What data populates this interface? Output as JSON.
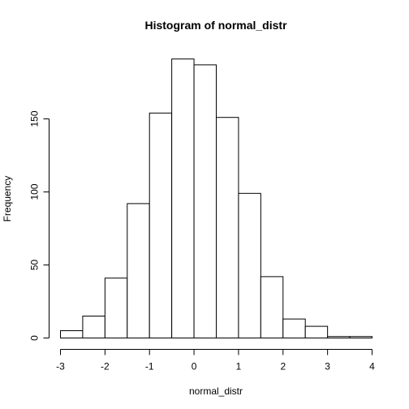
{
  "chart_data": {
    "type": "bar",
    "title": "Histogram of normal_distr",
    "xlabel": "normal_distr",
    "ylabel": "Frequency",
    "bins": [
      {
        "start": -3.0,
        "end": -2.5,
        "count": 5
      },
      {
        "start": -2.5,
        "end": -2.0,
        "count": 15
      },
      {
        "start": -2.0,
        "end": -1.5,
        "count": 41
      },
      {
        "start": -1.5,
        "end": -1.0,
        "count": 92
      },
      {
        "start": -1.0,
        "end": -0.5,
        "count": 154
      },
      {
        "start": -0.5,
        "end": 0.0,
        "count": 191
      },
      {
        "start": 0.0,
        "end": 0.5,
        "count": 187
      },
      {
        "start": 0.5,
        "end": 1.0,
        "count": 151
      },
      {
        "start": 1.0,
        "end": 1.5,
        "count": 99
      },
      {
        "start": 1.5,
        "end": 2.0,
        "count": 42
      },
      {
        "start": 2.0,
        "end": 2.5,
        "count": 13
      },
      {
        "start": 2.5,
        "end": 3.0,
        "count": 8
      },
      {
        "start": 3.0,
        "end": 3.5,
        "count": 1
      },
      {
        "start": 3.5,
        "end": 4.0,
        "count": 1
      }
    ],
    "xlim": [
      -3,
      4
    ],
    "ylim": [
      0,
      200
    ],
    "x_ticks": [
      "-3",
      "-2",
      "-1",
      "0",
      "1",
      "2",
      "3",
      "4"
    ],
    "y_ticks": [
      "0",
      "50",
      "100",
      "150"
    ],
    "grid": false,
    "colors": {
      "bar_fill": "#ffffff",
      "bar_stroke": "#000000",
      "axis": "#000000",
      "background": "#ffffff"
    }
  }
}
